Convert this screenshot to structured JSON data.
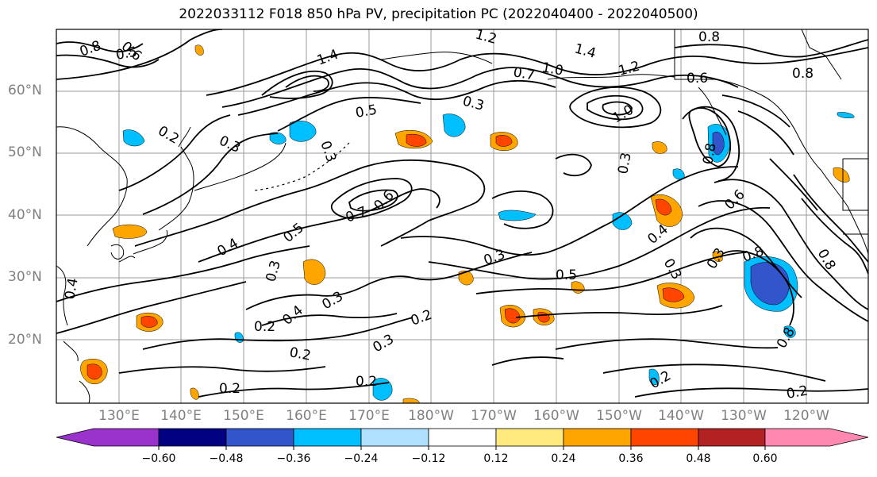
{
  "title": "2022033112 F018 850 hPa PV, precipitation PC (2022040400 - 2022040500)",
  "map": {
    "projection": "cylindrical",
    "region": "North Pacific",
    "lat_labels": [
      "60°N",
      "50°N",
      "40°N",
      "30°N",
      "20°N"
    ],
    "lon_labels": [
      "130°E",
      "140°E",
      "150°E",
      "160°E",
      "170°E",
      "180°W",
      "170°W",
      "160°W",
      "150°W",
      "140°W",
      "130°W",
      "120°W"
    ],
    "contour_labels": [
      "0.8",
      "0.6",
      "0.5",
      "1.2",
      "1.4",
      "1.4",
      "0.7",
      "1.0",
      "1.2",
      "0.8",
      "0.8",
      "0.6",
      "0.5",
      "0.3",
      "1.0",
      "0.8",
      "0.2",
      "0.3",
      "0.3",
      "0.3",
      "0.7",
      "0.6",
      "0.3",
      "0.4",
      "0.5",
      "0.3",
      "0.6",
      "0.4",
      "0.3",
      "0.3",
      "0.8",
      "0.8",
      "0.4",
      "0.5",
      "0.3",
      "0.4",
      "0.2",
      "0.2",
      "0.3",
      "0.2",
      "0.8",
      "0.2",
      "0.2",
      "0.2",
      "0.2"
    ],
    "contour_color": "#000000",
    "grid_color": "#999999"
  },
  "colorbar": {
    "colors": [
      "#9933cc",
      "#000080",
      "#3355cc",
      "#00bfff",
      "#b0e0ff",
      "#ffffff",
      "#ffea80",
      "#ffa500",
      "#ff4500",
      "#b22222",
      "#ff88b0"
    ],
    "tick_labels": [
      "−0.60",
      "−0.48",
      "−0.36",
      "−0.24",
      "−0.12",
      "0.12",
      "0.24",
      "0.36",
      "0.48",
      "0.60"
    ]
  }
}
